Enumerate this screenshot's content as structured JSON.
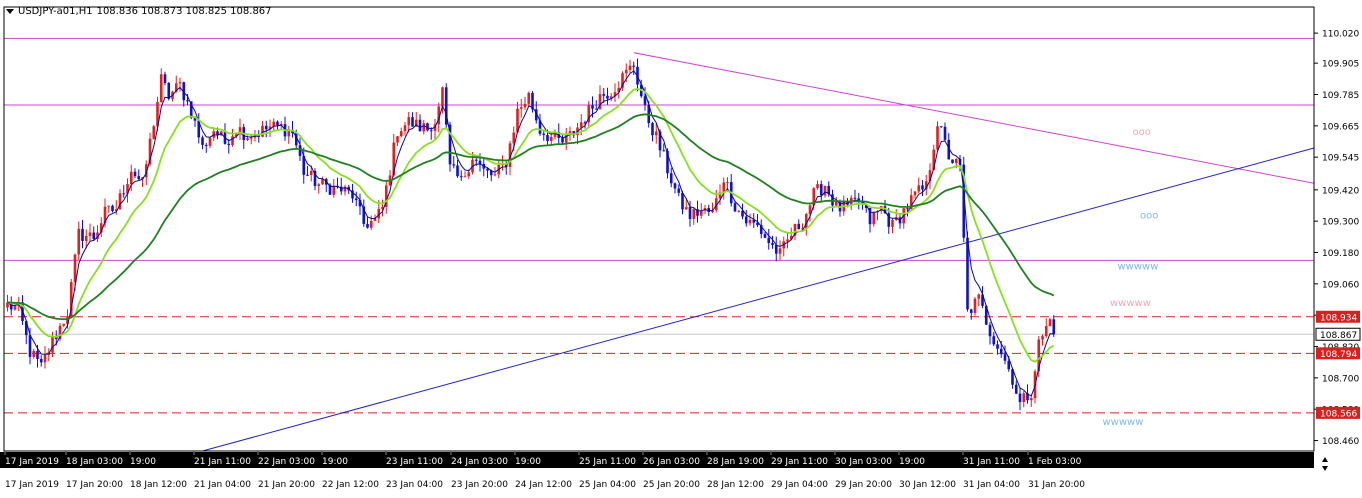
{
  "symbol": "USDJPY-a01,H1",
  "ohlc": "108.836 108.873 108.825 108.867",
  "colors": {
    "bull": "#e02020",
    "bear": "#1010d0",
    "ma_fast": "#0a0a8a",
    "ma_mid": "#88e020",
    "ma_slow": "#208020",
    "hline": "#cc44cc",
    "dash": "#d82020",
    "trend_down": "#cc44cc",
    "trend_up": "#2020cc",
    "wave_blue": "#80b8e8",
    "wave_pink": "#f0a8b8"
  },
  "axis": {
    "y_min": 108.42,
    "y_max": 110.12,
    "price_ticks": [
      "110.020",
      "109.905",
      "109.785",
      "109.665",
      "109.545",
      "109.420",
      "109.300",
      "109.180",
      "109.060",
      "108.940",
      "108.820",
      "108.700",
      "108.580",
      "108.460"
    ],
    "time_top": [
      "17 Jan 2019",
      "18 Jan 03:00",
      "19:00",
      "21 Jan 11:00",
      "22 Jan 03:00",
      "19:00",
      "23 Jan 11:00",
      "24 Jan 03:00",
      "19:00",
      "25 Jan 11:00",
      "26 Jan 03:00",
      "28 Jan 19:00",
      "29 Jan 11:00",
      "30 Jan 03:00",
      "19:00",
      "31 Jan 11:00",
      "1 Feb 03:00"
    ],
    "time_bottom": [
      "17 Jan 2019",
      "17 Jan 20:00",
      "18 Jan 12:00",
      "21 Jan 04:00",
      "21 Jan 20:00",
      "22 Jan 12:00",
      "23 Jan 04:00",
      "23 Jan 20:00",
      "24 Jan 12:00",
      "25 Jan 04:00",
      "25 Jan 20:00",
      "28 Jan 12:00",
      "29 Jan 04:00",
      "29 Jan 20:00",
      "30 Jan 12:00",
      "31 Jan 04:00",
      "31 Jan 20:00"
    ]
  },
  "levels": {
    "horizontal": [
      110.0,
      109.745,
      109.15
    ],
    "dashed": [
      108.934,
      108.794,
      108.566
    ],
    "current": 108.867,
    "red_labels": [
      "108.934",
      "108.794",
      "108.566"
    ],
    "current_label": "108.867"
  },
  "trendlines": {
    "down": {
      "from_bar": 167,
      "from_price": 109.945,
      "to_bar": 350,
      "to_price": 109.445
    },
    "up": {
      "from_bar": 52,
      "from_price": 108.42,
      "to_bar": 350,
      "to_price": 109.58
    }
  },
  "annotations": [
    {
      "text": "ooo",
      "bar": 300,
      "price": 109.645,
      "color": "wave_pink"
    },
    {
      "text": "ooo",
      "bar": 302,
      "price": 109.325,
      "color": "wave_blue"
    },
    {
      "text": "wwwww",
      "bar": 296,
      "price": 109.13,
      "color": "wave_blue"
    },
    {
      "text": "wwwww",
      "bar": 294,
      "price": 108.99,
      "color": "wave_pink"
    },
    {
      "text": "wwwww",
      "bar": 292,
      "price": 108.535,
      "color": "wave_blue"
    }
  ],
  "chart_data": {
    "type": "candlestick",
    "symbol": "USDJPY-a01",
    "timeframe": "H1",
    "ylim": [
      108.42,
      110.12
    ],
    "price_ticks": [
      110.02,
      109.905,
      109.785,
      109.665,
      109.545,
      109.42,
      109.3,
      109.18,
      109.06,
      108.94,
      108.82,
      108.7,
      108.58,
      108.46
    ],
    "bar_count": 280,
    "last_close": 108.867,
    "anchors": [
      [
        0,
        108.98
      ],
      [
        3,
        108.96
      ],
      [
        6,
        108.8
      ],
      [
        9,
        108.74
      ],
      [
        12,
        108.84
      ],
      [
        16,
        108.95
      ],
      [
        19,
        109.25
      ],
      [
        23,
        109.24
      ],
      [
        26,
        109.33
      ],
      [
        29,
        109.35
      ],
      [
        33,
        109.5
      ],
      [
        36,
        109.44
      ],
      [
        38,
        109.6
      ],
      [
        41,
        109.84
      ],
      [
        43,
        109.78
      ],
      [
        46,
        109.82
      ],
      [
        49,
        109.72
      ],
      [
        52,
        109.58
      ],
      [
        55,
        109.65
      ],
      [
        58,
        109.6
      ],
      [
        61,
        109.66
      ],
      [
        64,
        109.63
      ],
      [
        67,
        109.64
      ],
      [
        70,
        109.66
      ],
      [
        73,
        109.66
      ],
      [
        76,
        109.64
      ],
      [
        79,
        109.49
      ],
      [
        83,
        109.44
      ],
      [
        86,
        109.43
      ],
      [
        89,
        109.42
      ],
      [
        92,
        109.4
      ],
      [
        95,
        109.29
      ],
      [
        98,
        109.3
      ],
      [
        100,
        109.35
      ],
      [
        104,
        109.65
      ],
      [
        107,
        109.68
      ],
      [
        110,
        109.66
      ],
      [
        113,
        109.65
      ],
      [
        116,
        109.8
      ],
      [
        118,
        109.5
      ],
      [
        121,
        109.45
      ],
      [
        124,
        109.55
      ],
      [
        127,
        109.49
      ],
      [
        130,
        109.47
      ],
      [
        133,
        109.53
      ],
      [
        136,
        109.72
      ],
      [
        139,
        109.78
      ],
      [
        142,
        109.65
      ],
      [
        145,
        109.62
      ],
      [
        148,
        109.6
      ],
      [
        151,
        109.64
      ],
      [
        155,
        109.72
      ],
      [
        158,
        109.78
      ],
      [
        161,
        109.8
      ],
      [
        164,
        109.85
      ],
      [
        167,
        109.9
      ],
      [
        170,
        109.72
      ],
      [
        173,
        109.62
      ],
      [
        176,
        109.5
      ],
      [
        179,
        109.38
      ],
      [
        182,
        109.32
      ],
      [
        185,
        109.34
      ],
      [
        188,
        109.33
      ],
      [
        191,
        109.47
      ],
      [
        194,
        109.36
      ],
      [
        197,
        109.3
      ],
      [
        200,
        109.28
      ],
      [
        203,
        109.22
      ],
      [
        206,
        109.17
      ],
      [
        209,
        109.25
      ],
      [
        212,
        109.3
      ],
      [
        215,
        109.4
      ],
      [
        218,
        109.44
      ],
      [
        221,
        109.35
      ],
      [
        224,
        109.35
      ],
      [
        227,
        109.38
      ],
      [
        230,
        109.3
      ],
      [
        233,
        109.35
      ],
      [
        236,
        109.28
      ],
      [
        239,
        109.34
      ],
      [
        242,
        109.4
      ],
      [
        245,
        109.43
      ],
      [
        248,
        109.68
      ],
      [
        251,
        109.55
      ],
      [
        254,
        109.5
      ],
      [
        256,
        108.95
      ],
      [
        259,
        109.0
      ],
      [
        262,
        108.88
      ],
      [
        265,
        108.8
      ],
      [
        268,
        108.7
      ],
      [
        270,
        108.6
      ],
      [
        273,
        108.65
      ],
      [
        275,
        108.83
      ],
      [
        278,
        108.92
      ],
      [
        279,
        108.867
      ]
    ],
    "moving_averages": [
      {
        "period": "fast",
        "color": "#0a0a8a"
      },
      {
        "period": "mid",
        "color": "#88e020"
      },
      {
        "period": "slow",
        "color": "#208020"
      }
    ],
    "horizontal_levels": [
      110.0,
      109.745,
      109.15
    ],
    "dashed_levels": [
      108.934,
      108.794,
      108.566
    ]
  }
}
